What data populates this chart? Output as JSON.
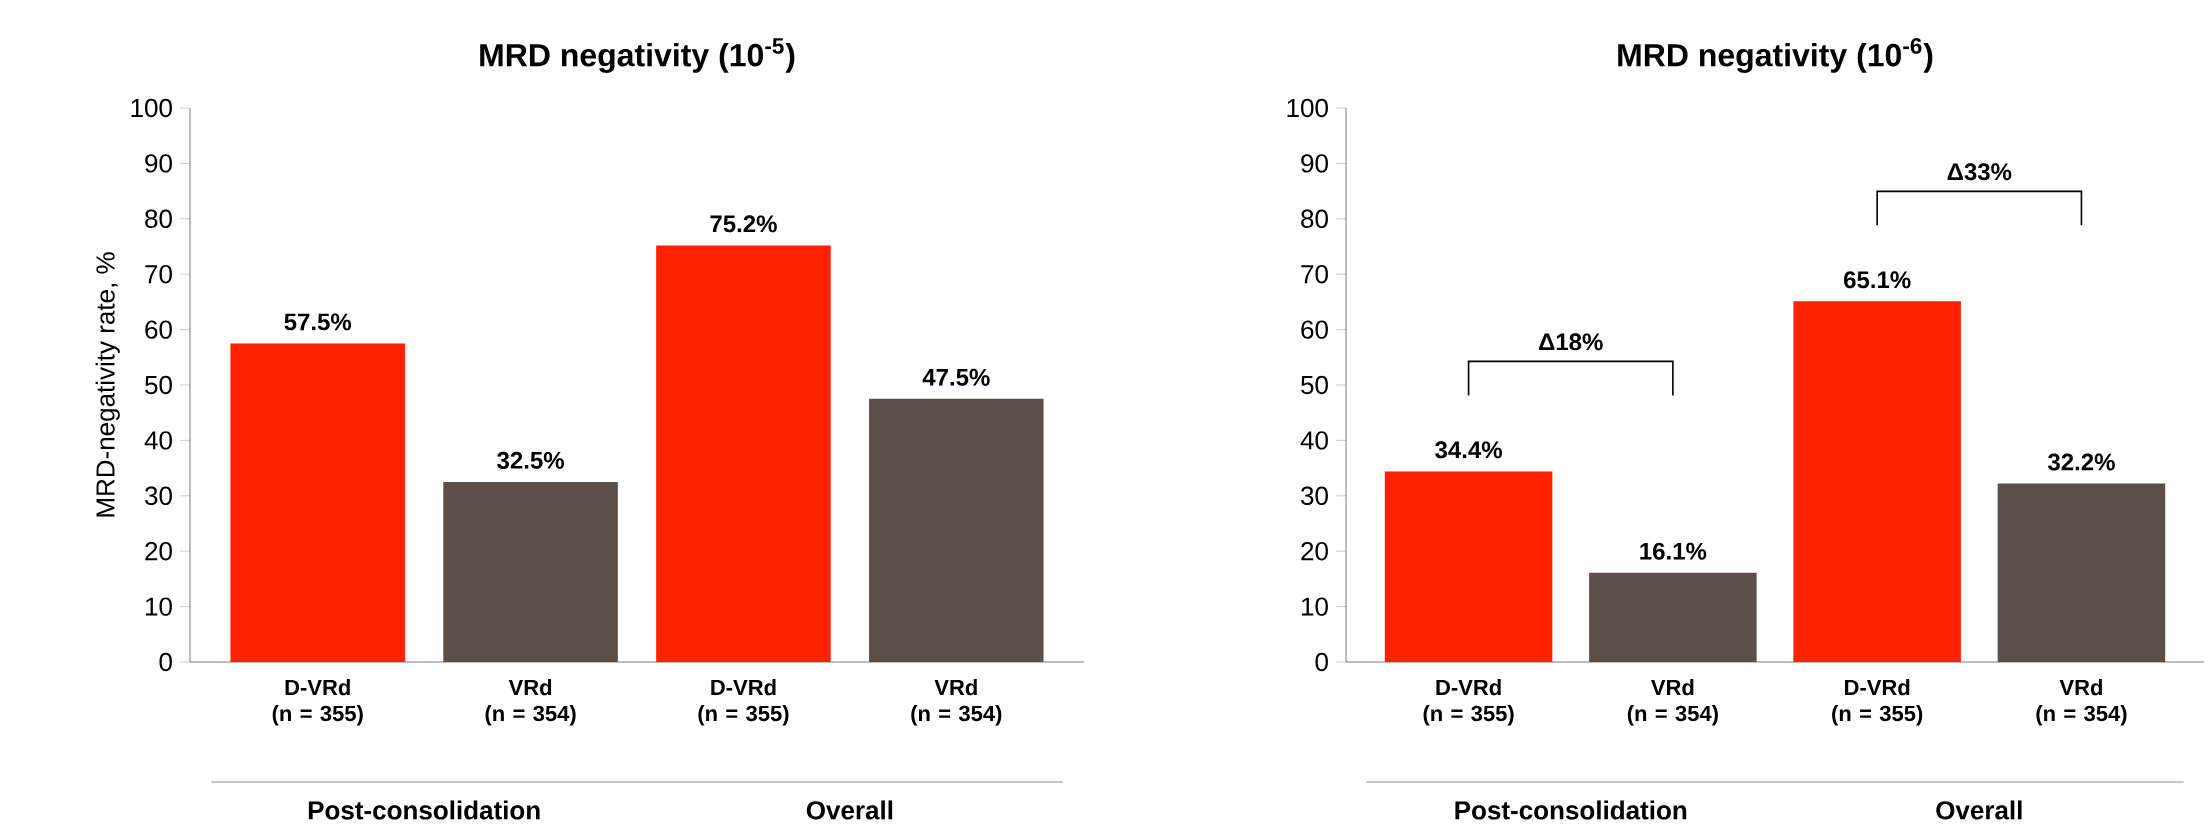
{
  "chart_data": [
    {
      "type": "bar",
      "title": "MRD negativity (10$^{-5}$)",
      "ylabel": "MRD-negativity rate, %",
      "categories": [
        "D-VRd (n = 355)",
        "VRd (n = 354)",
        "D-VRd (n = 355)",
        "VRd (n = 354)"
      ],
      "values": [
        57.5,
        32.5,
        75.2,
        47.5
      ],
      "value_labels": [
        "57.5%",
        "32.5%",
        "75.2%",
        "47.5%"
      ],
      "colors": [
        "#ff2200",
        "#5b4f47",
        "#ff2200",
        "#5b4f47"
      ],
      "ylim": [
        0,
        100
      ],
      "yticks": [
        0,
        10,
        20,
        30,
        40,
        50,
        60,
        70,
        80,
        90,
        100
      ],
      "grid": false,
      "annotations": [
        "Post-consolidation",
        "Overall"
      ]
    },
    {
      "type": "bar",
      "title": "MRD negativity (10$^{-6}$)",
      "categories": [
        "D-VRd (n = 355)",
        "VRd (n = 354)",
        "D-VRd (n = 355)",
        "VRd (n = 354)"
      ],
      "values": [
        34.4,
        16.1,
        65.1,
        32.2
      ],
      "value_labels": [
        "34.4%",
        "16.1%",
        "65.1%",
        "32.2%"
      ],
      "colors": [
        "#ff2200",
        "#5b4f47",
        "#ff2200",
        "#5b4f47"
      ],
      "ylim": [
        0,
        100
      ],
      "yticks": [
        0,
        10,
        20,
        30,
        40,
        50,
        60,
        70,
        80,
        90,
        100
      ],
      "grid": false,
      "annotations": [
        "Post-consolidation",
        "Overall",
        "Δ18%",
        "Δ33%"
      ]
    }
  ]
}
